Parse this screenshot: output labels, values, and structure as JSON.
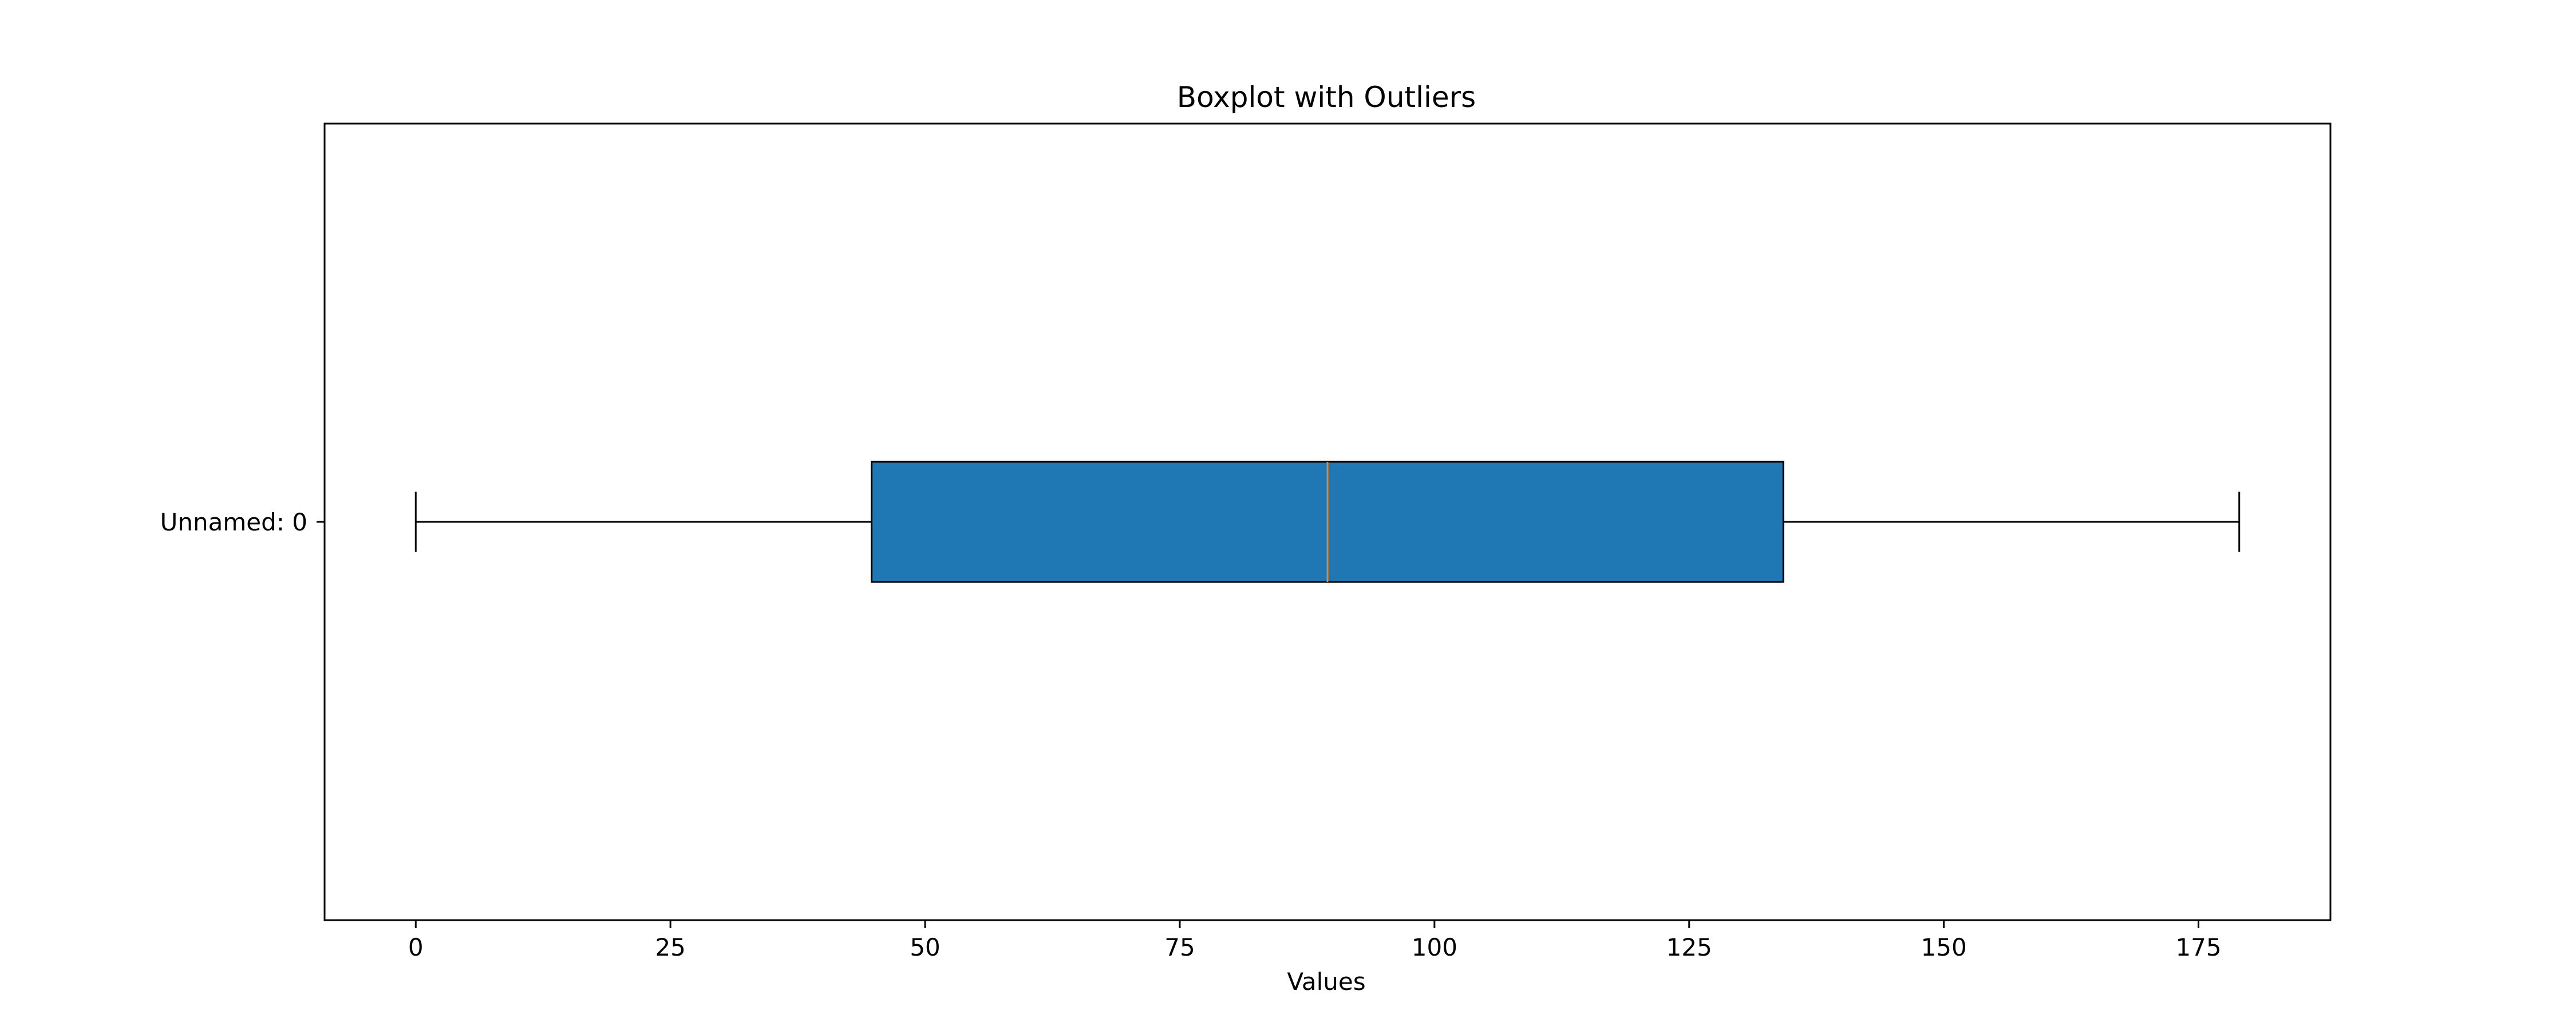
{
  "chart_data": {
    "type": "boxplot",
    "orientation": "horizontal",
    "title": "Boxplot with Outliers",
    "xlabel": "Values",
    "ylabel": "",
    "xlim": [
      -8.95,
      187.95
    ],
    "x_ticks": [
      0,
      25,
      50,
      75,
      100,
      125,
      150,
      175
    ],
    "categories": [
      "Unnamed: 0"
    ],
    "boxes": [
      {
        "label": "Unnamed: 0",
        "whisker_low": 0,
        "q1": 44.75,
        "median": 89.5,
        "q3": 134.25,
        "whisker_high": 179,
        "outliers": []
      }
    ],
    "grid": false,
    "legend": "none",
    "colors": {
      "box_fill": "#1f77b4",
      "box_edge": "#000000",
      "median": "#ff7f0e",
      "whisker": "#000000",
      "axes": "#000000"
    }
  }
}
